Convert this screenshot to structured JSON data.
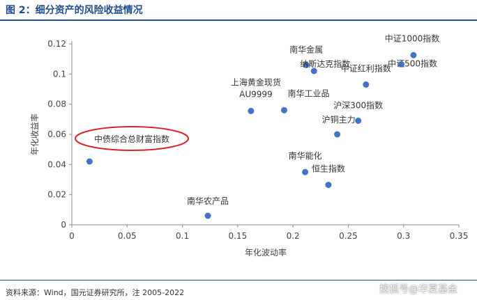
{
  "figure": {
    "title": "图 2：细分资产的风险收益情况",
    "source": "资料来源：Wind，国元证券研究所，注 2005-2022",
    "watermark": "搜狐号@华夏基金"
  },
  "chart_data": {
    "type": "scatter",
    "xlabel": "年化波动率",
    "ylabel": "年化收益率",
    "xlim": [
      0,
      0.35
    ],
    "ylim": [
      0,
      0.12
    ],
    "x_ticks": [
      "0",
      "0.05",
      "0.1",
      "0.15",
      "0.2",
      "0.25",
      "0.3",
      "0.35"
    ],
    "y_ticks": [
      "0",
      "0.02",
      "0.04",
      "0.06",
      "0.08",
      "0.1",
      "0.12"
    ],
    "grid": false,
    "marker_color": "#4472c4",
    "highlight_color": "#d9232a",
    "points": [
      {
        "label": "中债综合总财富指数",
        "x": 0.016,
        "y": 0.042,
        "highlight": true
      },
      {
        "label": "南华农产品",
        "x": 0.123,
        "y": 0.006
      },
      {
        "label": "上海黄金现货AU9999",
        "x": 0.162,
        "y": 0.0755
      },
      {
        "label": "南华工业品",
        "x": 0.192,
        "y": 0.076
      },
      {
        "label": "南华能化",
        "x": 0.211,
        "y": 0.035
      },
      {
        "label": "南华金属",
        "x": 0.212,
        "y": 0.106
      },
      {
        "label": "纳斯达克指数",
        "x": 0.219,
        "y": 0.102
      },
      {
        "label": "恒生指数",
        "x": 0.232,
        "y": 0.0265
      },
      {
        "label": "沪铜主力",
        "x": 0.24,
        "y": 0.06
      },
      {
        "label": "沪深300指数",
        "x": 0.259,
        "y": 0.069
      },
      {
        "label": "中证红利指数",
        "x": 0.266,
        "y": 0.093
      },
      {
        "label": "中证500指数",
        "x": 0.298,
        "y": 0.1065
      },
      {
        "label": "中证1000指数",
        "x": 0.309,
        "y": 0.1125
      }
    ]
  }
}
